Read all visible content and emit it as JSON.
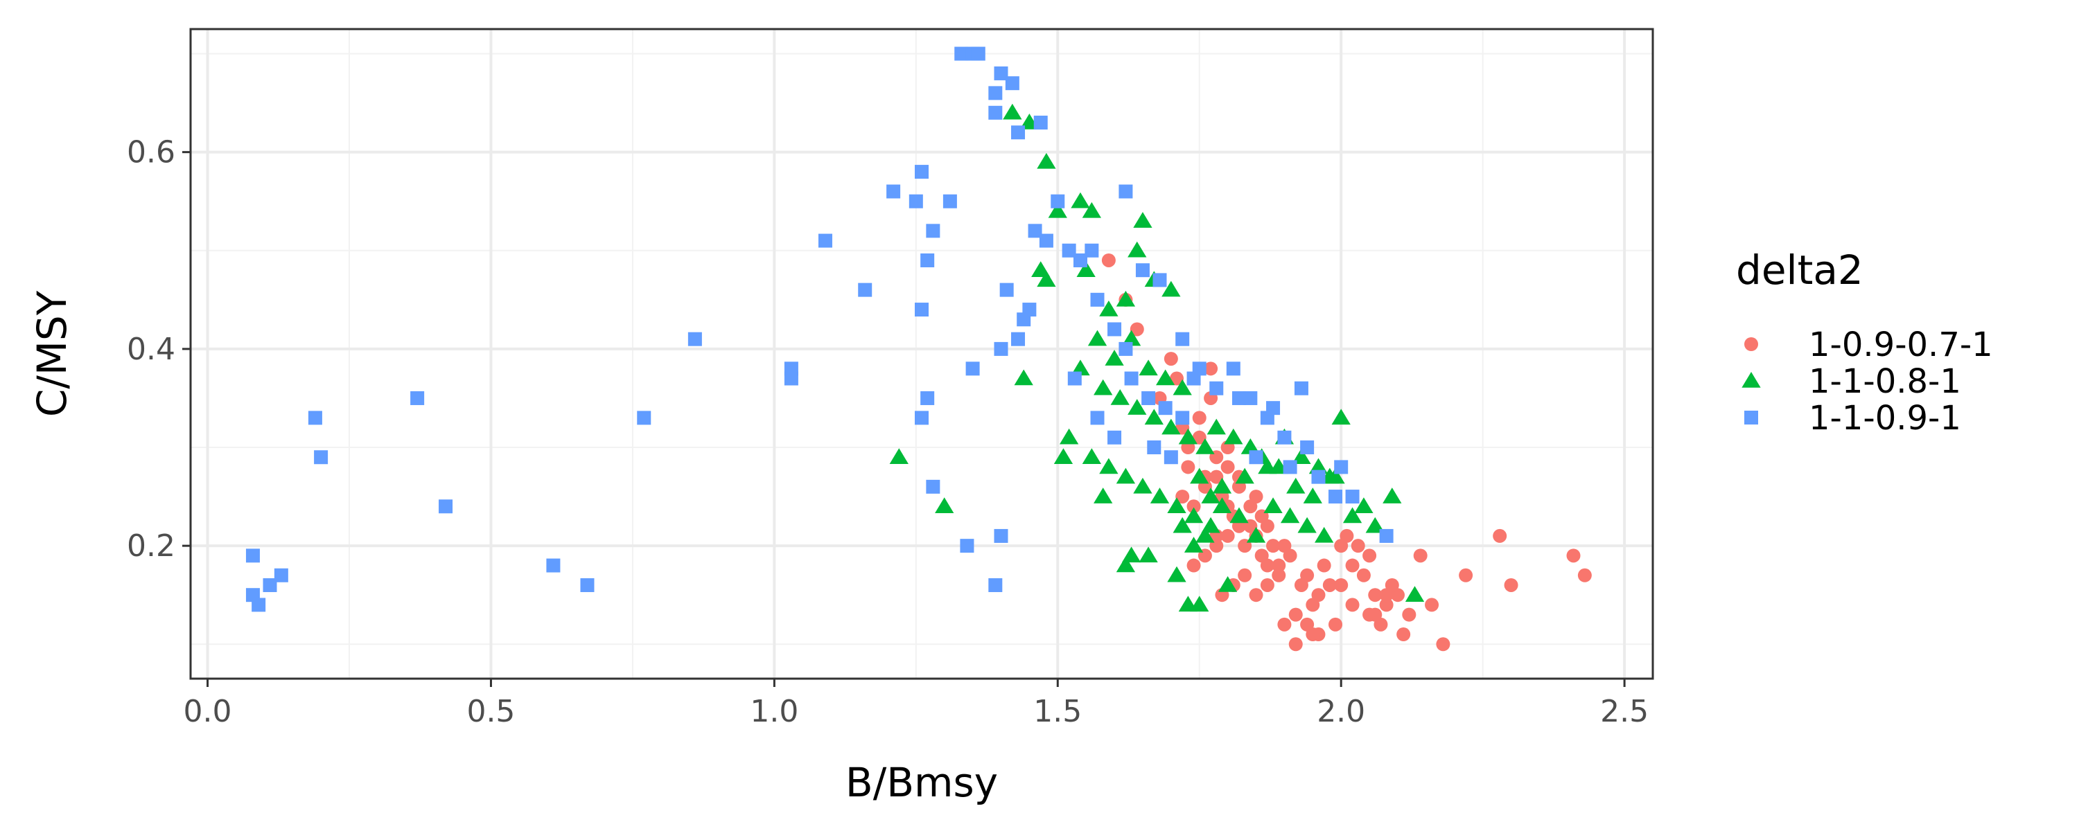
{
  "chart_data": {
    "type": "scatter",
    "xlabel": "B/Bmsy",
    "ylabel": "C/MSY",
    "xlim": [
      -0.03,
      2.55
    ],
    "ylim": [
      0.065,
      0.725
    ],
    "x_ticks": [
      0.0,
      0.5,
      1.0,
      1.5,
      2.0,
      2.5
    ],
    "x_tick_labels": [
      "0.0",
      "0.5",
      "1.0",
      "1.5",
      "2.0",
      "2.5"
    ],
    "y_ticks": [
      0.2,
      0.4,
      0.6
    ],
    "y_tick_labels": [
      "0.2",
      "0.4",
      "0.6"
    ],
    "grid": true,
    "legend": {
      "title": "delta2",
      "position": "right"
    },
    "series": [
      {
        "name": "1-0.9-0.7-1",
        "color": "#F8766D",
        "marker": "circle",
        "points": [
          [
            1.59,
            0.49
          ],
          [
            1.64,
            0.42
          ],
          [
            1.7,
            0.39
          ],
          [
            1.62,
            0.45
          ],
          [
            1.68,
            0.35
          ],
          [
            1.72,
            0.32
          ],
          [
            1.75,
            0.31
          ],
          [
            1.77,
            0.38
          ],
          [
            1.73,
            0.3
          ],
          [
            1.78,
            0.29
          ],
          [
            1.8,
            0.28
          ],
          [
            1.76,
            0.27
          ],
          [
            1.82,
            0.26
          ],
          [
            1.79,
            0.25
          ],
          [
            1.74,
            0.24
          ],
          [
            1.81,
            0.23
          ],
          [
            1.84,
            0.22
          ],
          [
            1.78,
            0.21
          ],
          [
            1.83,
            0.2
          ],
          [
            1.86,
            0.19
          ],
          [
            1.8,
            0.3
          ],
          [
            1.76,
            0.26
          ],
          [
            1.72,
            0.25
          ],
          [
            1.85,
            0.21
          ],
          [
            1.87,
            0.18
          ],
          [
            1.89,
            0.17
          ],
          [
            1.91,
            0.19
          ],
          [
            1.93,
            0.16
          ],
          [
            1.95,
            0.14
          ],
          [
            1.92,
            0.13
          ],
          [
            1.94,
            0.12
          ],
          [
            1.96,
            0.11
          ],
          [
            1.98,
            0.16
          ],
          [
            2.0,
            0.2
          ],
          [
            2.02,
            0.18
          ],
          [
            2.04,
            0.17
          ],
          [
            2.06,
            0.15
          ],
          [
            2.08,
            0.14
          ],
          [
            2.05,
            0.13
          ],
          [
            2.07,
            0.12
          ],
          [
            2.1,
            0.15
          ],
          [
            2.12,
            0.13
          ],
          [
            2.14,
            0.19
          ],
          [
            2.16,
            0.14
          ],
          [
            2.18,
            0.1
          ],
          [
            2.22,
            0.17
          ],
          [
            2.28,
            0.21
          ],
          [
            2.3,
            0.16
          ],
          [
            2.41,
            0.19
          ],
          [
            2.43,
            0.17
          ],
          [
            1.9,
            0.12
          ],
          [
            1.92,
            0.1
          ],
          [
            1.95,
            0.11
          ],
          [
            1.99,
            0.12
          ],
          [
            2.01,
            0.21
          ],
          [
            2.03,
            0.2
          ],
          [
            2.05,
            0.19
          ],
          [
            2.09,
            0.16
          ],
          [
            2.11,
            0.11
          ],
          [
            1.97,
            0.18
          ],
          [
            1.88,
            0.2
          ],
          [
            1.86,
            0.23
          ],
          [
            1.84,
            0.24
          ],
          [
            1.82,
            0.22
          ],
          [
            1.8,
            0.21
          ],
          [
            1.78,
            0.2
          ],
          [
            1.76,
            0.19
          ],
          [
            1.74,
            0.18
          ],
          [
            1.79,
            0.15
          ],
          [
            1.81,
            0.16
          ],
          [
            1.83,
            0.17
          ],
          [
            1.85,
            0.15
          ],
          [
            1.87,
            0.16
          ],
          [
            1.89,
            0.18
          ],
          [
            1.94,
            0.17
          ],
          [
            1.96,
            0.15
          ],
          [
            2.0,
            0.16
          ],
          [
            2.02,
            0.14
          ],
          [
            2.06,
            0.13
          ],
          [
            2.08,
            0.15
          ],
          [
            1.73,
            0.28
          ],
          [
            1.75,
            0.33
          ],
          [
            1.77,
            0.35
          ],
          [
            1.71,
            0.37
          ],
          [
            1.78,
            0.27
          ],
          [
            1.8,
            0.24
          ],
          [
            1.82,
            0.27
          ],
          [
            1.85,
            0.25
          ],
          [
            1.87,
            0.22
          ],
          [
            1.9,
            0.2
          ]
        ]
      },
      {
        "name": "1-1-0.8-1",
        "color": "#00BA38",
        "marker": "triangle",
        "points": [
          [
            1.42,
            0.64
          ],
          [
            1.45,
            0.63
          ],
          [
            1.48,
            0.59
          ],
          [
            1.54,
            0.55
          ],
          [
            1.56,
            0.54
          ],
          [
            1.65,
            0.53
          ],
          [
            1.5,
            0.54
          ],
          [
            1.47,
            0.48
          ],
          [
            1.48,
            0.47
          ],
          [
            1.55,
            0.48
          ],
          [
            1.59,
            0.44
          ],
          [
            1.62,
            0.45
          ],
          [
            1.64,
            0.5
          ],
          [
            1.67,
            0.47
          ],
          [
            1.7,
            0.46
          ],
          [
            1.57,
            0.41
          ],
          [
            1.6,
            0.39
          ],
          [
            1.63,
            0.41
          ],
          [
            1.66,
            0.38
          ],
          [
            1.69,
            0.37
          ],
          [
            1.72,
            0.36
          ],
          [
            1.54,
            0.38
          ],
          [
            1.58,
            0.36
          ],
          [
            1.61,
            0.35
          ],
          [
            1.64,
            0.34
          ],
          [
            1.67,
            0.33
          ],
          [
            1.7,
            0.32
          ],
          [
            1.73,
            0.31
          ],
          [
            1.52,
            0.31
          ],
          [
            1.51,
            0.29
          ],
          [
            1.56,
            0.29
          ],
          [
            1.59,
            0.28
          ],
          [
            1.62,
            0.27
          ],
          [
            1.65,
            0.26
          ],
          [
            1.68,
            0.25
          ],
          [
            1.71,
            0.24
          ],
          [
            1.74,
            0.23
          ],
          [
            1.77,
            0.22
          ],
          [
            1.58,
            0.25
          ],
          [
            1.22,
            0.29
          ],
          [
            1.3,
            0.24
          ],
          [
            1.44,
            0.37
          ],
          [
            1.63,
            0.19
          ],
          [
            1.66,
            0.19
          ],
          [
            1.62,
            0.18
          ],
          [
            1.71,
            0.17
          ],
          [
            1.73,
            0.14
          ],
          [
            1.75,
            0.14
          ],
          [
            1.8,
            0.16
          ],
          [
            1.83,
            0.27
          ],
          [
            1.86,
            0.29
          ],
          [
            1.89,
            0.28
          ],
          [
            1.92,
            0.26
          ],
          [
            1.95,
            0.25
          ],
          [
            1.98,
            0.27
          ],
          [
            2.0,
            0.33
          ],
          [
            2.02,
            0.23
          ],
          [
            2.04,
            0.24
          ],
          [
            2.06,
            0.22
          ],
          [
            2.09,
            0.25
          ],
          [
            2.13,
            0.15
          ],
          [
            1.76,
            0.3
          ],
          [
            1.78,
            0.32
          ],
          [
            1.81,
            0.31
          ],
          [
            1.84,
            0.3
          ],
          [
            1.87,
            0.28
          ],
          [
            1.9,
            0.31
          ],
          [
            1.93,
            0.29
          ],
          [
            1.96,
            0.28
          ],
          [
            1.99,
            0.27
          ],
          [
            1.75,
            0.27
          ],
          [
            1.77,
            0.25
          ],
          [
            1.79,
            0.26
          ],
          [
            1.82,
            0.23
          ],
          [
            1.85,
            0.21
          ],
          [
            1.88,
            0.24
          ],
          [
            1.91,
            0.23
          ],
          [
            1.94,
            0.22
          ],
          [
            1.97,
            0.21
          ],
          [
            1.72,
            0.22
          ],
          [
            1.74,
            0.2
          ],
          [
            1.76,
            0.21
          ],
          [
            1.79,
            0.24
          ]
        ]
      },
      {
        "name": "1-1-0.9-1",
        "color": "#619CFF",
        "marker": "square",
        "points": [
          [
            0.08,
            0.19
          ],
          [
            0.08,
            0.15
          ],
          [
            0.09,
            0.14
          ],
          [
            0.11,
            0.16
          ],
          [
            0.13,
            0.17
          ],
          [
            0.19,
            0.33
          ],
          [
            0.2,
            0.29
          ],
          [
            0.37,
            0.35
          ],
          [
            0.42,
            0.24
          ],
          [
            0.61,
            0.18
          ],
          [
            0.67,
            0.16
          ],
          [
            0.77,
            0.33
          ],
          [
            0.86,
            0.41
          ],
          [
            1.03,
            0.38
          ],
          [
            1.03,
            0.37
          ],
          [
            1.09,
            0.51
          ],
          [
            1.16,
            0.46
          ],
          [
            1.21,
            0.56
          ],
          [
            1.25,
            0.55
          ],
          [
            1.26,
            0.58
          ],
          [
            1.28,
            0.52
          ],
          [
            1.27,
            0.49
          ],
          [
            1.26,
            0.44
          ],
          [
            1.27,
            0.35
          ],
          [
            1.26,
            0.33
          ],
          [
            1.28,
            0.26
          ],
          [
            1.31,
            0.55
          ],
          [
            1.33,
            0.7
          ],
          [
            1.35,
            0.7
          ],
          [
            1.36,
            0.7
          ],
          [
            1.39,
            0.66
          ],
          [
            1.4,
            0.68
          ],
          [
            1.42,
            0.67
          ],
          [
            1.39,
            0.64
          ],
          [
            1.43,
            0.62
          ],
          [
            1.47,
            0.63
          ],
          [
            1.35,
            0.38
          ],
          [
            1.34,
            0.2
          ],
          [
            1.4,
            0.21
          ],
          [
            1.39,
            0.16
          ],
          [
            1.4,
            0.4
          ],
          [
            1.41,
            0.46
          ],
          [
            1.43,
            0.41
          ],
          [
            1.44,
            0.43
          ],
          [
            1.45,
            0.44
          ],
          [
            1.46,
            0.52
          ],
          [
            1.48,
            0.51
          ],
          [
            1.5,
            0.55
          ],
          [
            1.52,
            0.5
          ],
          [
            1.54,
            0.49
          ],
          [
            1.56,
            0.5
          ],
          [
            1.62,
            0.56
          ],
          [
            1.65,
            0.48
          ],
          [
            1.68,
            0.47
          ],
          [
            1.53,
            0.37
          ],
          [
            1.57,
            0.33
          ],
          [
            1.6,
            0.31
          ],
          [
            1.63,
            0.37
          ],
          [
            1.66,
            0.35
          ],
          [
            1.69,
            0.34
          ],
          [
            1.72,
            0.33
          ],
          [
            1.75,
            0.38
          ],
          [
            1.78,
            0.36
          ],
          [
            1.81,
            0.38
          ],
          [
            1.84,
            0.35
          ],
          [
            1.87,
            0.33
          ],
          [
            1.9,
            0.31
          ],
          [
            1.93,
            0.36
          ],
          [
            1.94,
            0.3
          ],
          [
            1.96,
            0.27
          ],
          [
            1.99,
            0.25
          ],
          [
            2.02,
            0.25
          ],
          [
            2.08,
            0.21
          ],
          [
            1.57,
            0.45
          ],
          [
            1.6,
            0.42
          ],
          [
            1.62,
            0.4
          ],
          [
            1.67,
            0.3
          ],
          [
            1.7,
            0.29
          ],
          [
            1.72,
            0.41
          ],
          [
            1.74,
            0.37
          ],
          [
            1.82,
            0.35
          ],
          [
            1.85,
            0.29
          ],
          [
            1.88,
            0.34
          ],
          [
            1.91,
            0.28
          ],
          [
            2.0,
            0.28
          ]
        ]
      }
    ]
  }
}
